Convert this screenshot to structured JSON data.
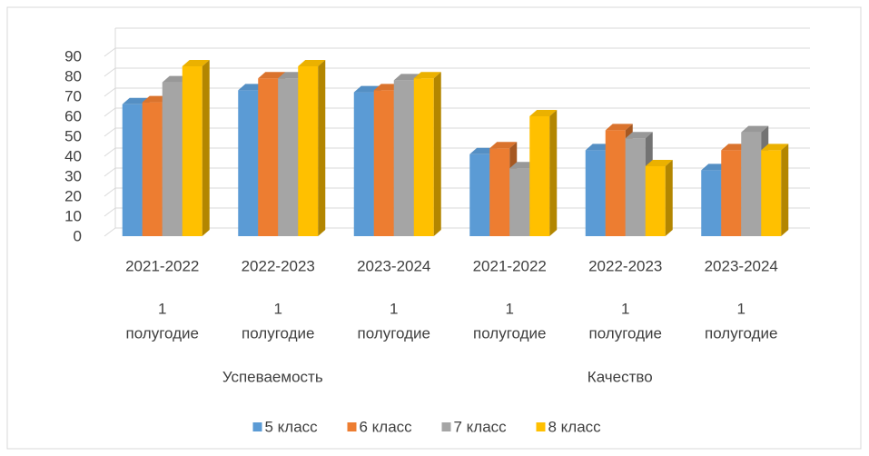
{
  "chart_data": {
    "type": "bar3d",
    "categories": [
      "2021-2022",
      "2022-2023",
      "2023-2024",
      "2021-2022",
      "2022-2023",
      "2023-2024"
    ],
    "periods": [
      [
        "1",
        "полугодие"
      ],
      [
        "1",
        "полугодие"
      ],
      [
        "1",
        "полугодие"
      ],
      [
        "1",
        "полугодие"
      ],
      [
        "1",
        "полугодие"
      ],
      [
        "1",
        "полугодие"
      ]
    ],
    "groups": [
      "Успеваемость",
      "Качество"
    ],
    "series": [
      {
        "name": "5 класс",
        "color": "#5b9bd5",
        "values": [
          66,
          73,
          72,
          41,
          43,
          33
        ]
      },
      {
        "name": "6 класс",
        "color": "#ed7d31",
        "values": [
          67,
          79,
          73,
          44,
          53,
          43
        ]
      },
      {
        "name": "7 класс",
        "color": "#a5a5a5",
        "values": [
          77,
          79,
          78,
          34,
          49,
          52
        ]
      },
      {
        "name": "8 класс",
        "color": "#ffc000",
        "values": [
          85,
          85,
          79,
          60,
          35,
          43
        ]
      }
    ],
    "ylim": [
      0,
      100
    ],
    "yticks": [
      0,
      10,
      20,
      30,
      40,
      50,
      60,
      70,
      80,
      90
    ],
    "grid": true,
    "legend": "bottom"
  }
}
